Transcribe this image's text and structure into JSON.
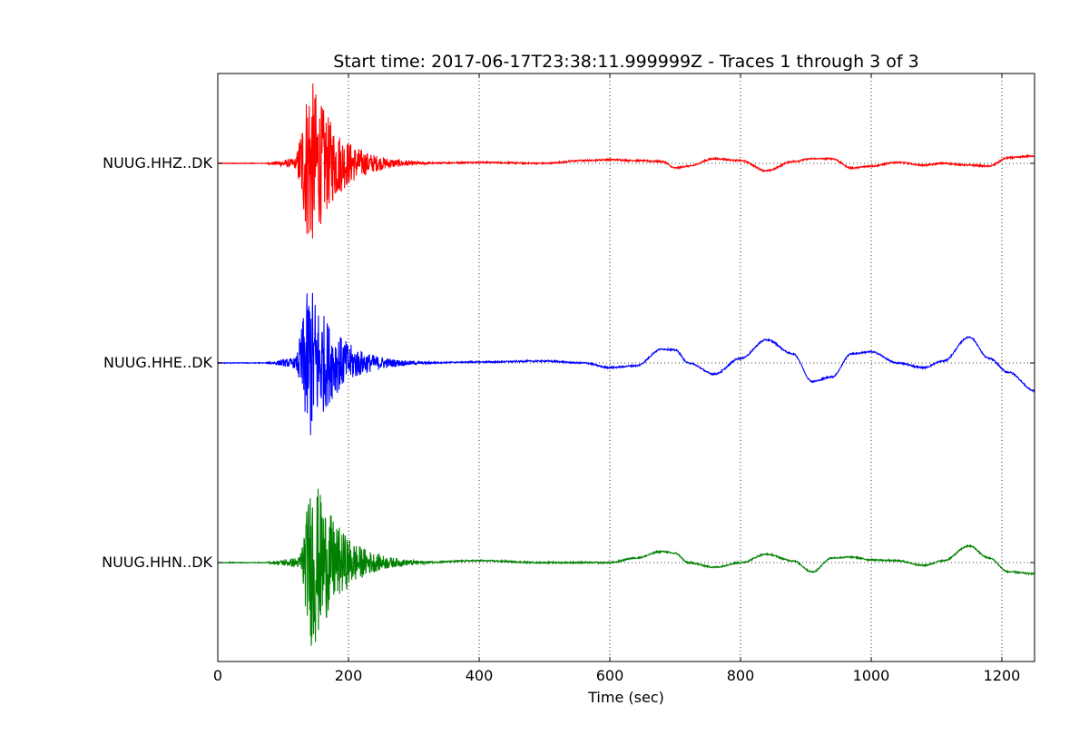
{
  "chart_data": {
    "type": "line",
    "title": "Start time: 2017-06-17T23:38:11.999999Z  - Traces 1 through 3 of 3",
    "xlabel": "Time (sec)",
    "ylabel": "",
    "xlim": [
      0,
      1250
    ],
    "xticks": [
      0,
      200,
      400,
      600,
      800,
      1000,
      1200
    ],
    "grid": true,
    "series": [
      {
        "name": "NUUG.HHZ..DK",
        "color": "#ff0000",
        "burst": {
          "start": 70,
          "peak": 140,
          "peak_amp": 1.0,
          "decay": 55,
          "end": 330
        }
      },
      {
        "name": "NUUG.HHE..DK",
        "color": "#0000ff",
        "burst": {
          "start": 70,
          "peak": 140,
          "peak_amp": 0.9,
          "decay": 55,
          "end": 330
        }
      },
      {
        "name": "NUUG.HHN..DK",
        "color": "#008000",
        "burst": {
          "start": 70,
          "peak": 145,
          "peak_amp": 1.0,
          "decay": 55,
          "end": 330
        }
      }
    ],
    "envelope": {
      "x": [
        0,
        100,
        200,
        300,
        400,
        500,
        560,
        600,
        640,
        680,
        700,
        720,
        760,
        800,
        840,
        880,
        910,
        940,
        970,
        1000,
        1040,
        1080,
        1110,
        1150,
        1180,
        1210,
        1250
      ],
      "y": [
        [
          0,
          0,
          0,
          0,
          0.01,
          0,
          0.03,
          0.04,
          0.03,
          0.02,
          -0.05,
          -0.03,
          0.05,
          0.03,
          -0.08,
          0.02,
          0.05,
          0.05,
          -0.05,
          -0.03,
          0.01,
          -0.02,
          0.0,
          -0.02,
          -0.03,
          0.06,
          0.08
        ],
        [
          0,
          0,
          0,
          0,
          0.01,
          0.02,
          0.0,
          -0.05,
          -0.03,
          0.15,
          0.14,
          0.0,
          -0.12,
          0.05,
          0.25,
          0.1,
          -0.2,
          -0.15,
          0.1,
          0.12,
          0.0,
          -0.05,
          0.02,
          0.28,
          0.05,
          -0.1,
          -0.3
        ],
        [
          0,
          0,
          0,
          0,
          0.02,
          0.0,
          0.0,
          0.0,
          0.05,
          0.12,
          0.1,
          0.0,
          -0.05,
          0.0,
          0.09,
          0.02,
          -0.1,
          0.05,
          0.06,
          0.03,
          0.02,
          -0.03,
          0.02,
          0.18,
          0.05,
          -0.1,
          -0.12
        ]
      ]
    }
  }
}
